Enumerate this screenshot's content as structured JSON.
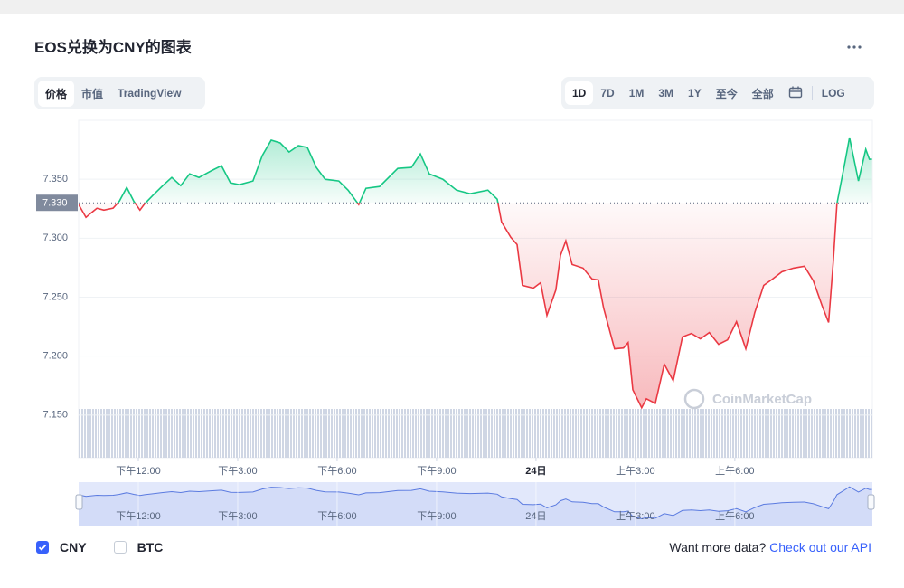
{
  "header": {
    "title": "EOS兑换为CNY的图表"
  },
  "tabs": [
    "价格",
    "市值",
    "TradingView"
  ],
  "ranges": [
    "1D",
    "7D",
    "1M",
    "3M",
    "1Y",
    "至今",
    "全部"
  ],
  "log_button": "LOG",
  "chart_data": {
    "type": "line",
    "x": [
      10.2,
      10.42,
      10.55,
      10.75,
      10.96,
      11.24,
      11.43,
      11.65,
      11.86,
      12.05,
      12.19,
      12.46,
      12.74,
      13.01,
      13.28,
      13.55,
      13.83,
      14.24,
      14.51,
      14.78,
      15.05,
      15.46,
      15.74,
      16.01,
      16.28,
      16.55,
      16.83,
      17.1,
      17.37,
      17.64,
      18.05,
      18.33,
      18.65,
      18.87,
      19.28,
      19.83,
      20.24,
      20.51,
      20.78,
      21.19,
      21.6,
      22.01,
      22.55,
      22.83,
      22.96,
      23.24,
      23.43,
      23.59,
      23.92,
      24.14,
      24.33,
      24.6,
      24.74,
      24.9,
      25.09,
      25.42,
      25.69,
      25.88,
      26.04,
      26.37,
      26.64,
      26.78,
      26.92,
      27.19,
      27.33,
      27.6,
      27.87,
      28.14,
      28.42,
      28.69,
      28.96,
      29.23,
      29.51,
      29.78,
      30.05,
      30.33,
      30.6,
      30.87,
      31.14,
      31.42,
      31.77,
      32.1,
      32.37,
      32.64,
      32.83,
      32.97,
      33.08,
      33.33,
      33.46,
      33.73,
      33.95,
      34.06,
      34.14
    ],
    "values": [
      7.3285,
      7.3177,
      7.3208,
      7.3254,
      7.3238,
      7.3254,
      7.3315,
      7.3431,
      7.3315,
      7.3238,
      7.3292,
      7.3369,
      7.3446,
      7.3515,
      7.3446,
      7.3546,
      7.3515,
      7.3577,
      7.3615,
      7.3469,
      7.3454,
      7.3485,
      7.37,
      7.3831,
      7.3808,
      7.3731,
      7.3785,
      7.3769,
      7.36,
      7.35,
      7.3485,
      7.3408,
      7.3285,
      7.3423,
      7.3438,
      7.3592,
      7.36,
      7.3715,
      7.3546,
      7.35,
      7.3408,
      7.3377,
      7.3408,
      7.3331,
      7.3138,
      7.3008,
      7.2946,
      7.26,
      7.2577,
      7.2623,
      7.2346,
      7.2562,
      7.2854,
      7.2977,
      7.2777,
      7.2746,
      7.2654,
      7.2646,
      7.2408,
      7.2062,
      7.2069,
      7.2115,
      7.1715,
      7.1562,
      7.1638,
      7.16,
      7.1931,
      7.1792,
      7.2162,
      7.2192,
      7.2146,
      7.22,
      7.21,
      7.2138,
      7.2292,
      7.2062,
      7.2369,
      7.26,
      7.2654,
      7.2715,
      7.2746,
      7.2762,
      7.2638,
      7.2423,
      7.2285,
      7.2792,
      7.3292,
      7.3654,
      7.3854,
      7.3485,
      7.3754,
      7.3669,
      7.3669
    ],
    "baseline": {
      "value": 7.33,
      "label": "7.330"
    },
    "color_up": "#16c784",
    "color_down": "#ea3943",
    "navigator_color": "#5b7be0",
    "xlim": [
      10.2,
      34.15
    ],
    "ylim": [
      7.1138,
      7.4
    ],
    "xticks": [
      {
        "value": 12,
        "label": "下午12:00"
      },
      {
        "value": 15,
        "label": "下午3:00"
      },
      {
        "value": 18,
        "label": "下午6:00"
      },
      {
        "value": 21,
        "label": "下午9:00"
      },
      {
        "value": 24,
        "label": "24日"
      },
      {
        "value": 27,
        "label": "上午3:00"
      },
      {
        "value": 30,
        "label": "上午6:00"
      }
    ],
    "yticks": [
      {
        "value": 7.15,
        "label": "7.150"
      },
      {
        "value": 7.2,
        "label": "7.200"
      },
      {
        "value": 7.25,
        "label": "7.250"
      },
      {
        "value": 7.3,
        "label": "7.300"
      },
      {
        "value": 7.35,
        "label": "7.350"
      }
    ],
    "grid": true,
    "watermark": "CoinMarketCap"
  },
  "legend": [
    {
      "label": "CNY",
      "checked": true
    },
    {
      "label": "BTC",
      "checked": false
    }
  ],
  "footer": {
    "text": "Want more data?",
    "link": "Check out our API"
  }
}
